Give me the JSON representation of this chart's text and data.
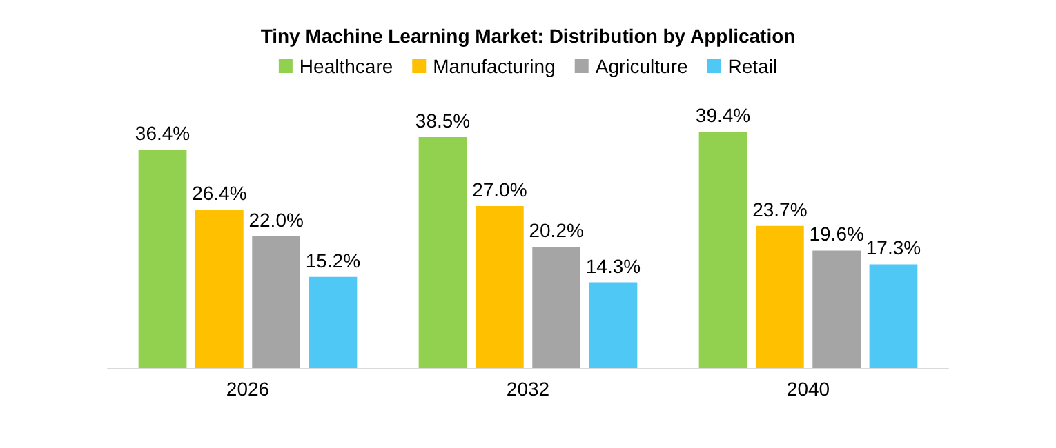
{
  "chart_data": {
    "type": "bar",
    "title": "Tiny Machine Learning Market: Distribution by Application",
    "categories": [
      "2026",
      "2032",
      "2040"
    ],
    "series": [
      {
        "name": "Healthcare",
        "color": "#92d050",
        "values": [
          36.4,
          38.5,
          39.4
        ],
        "value_labels": [
          "36.4%",
          "38.5%",
          "39.4%"
        ]
      },
      {
        "name": "Manufacturing",
        "color": "#ffc000",
        "values": [
          26.4,
          27.0,
          23.7
        ],
        "value_labels": [
          "26.4%",
          "27.0%",
          "23.7%"
        ]
      },
      {
        "name": "Agriculture",
        "color": "#a5a5a5",
        "values": [
          22.0,
          20.2,
          19.6
        ],
        "value_labels": [
          "22.0%",
          "20.2%",
          "19.6%"
        ]
      },
      {
        "name": "Retail",
        "color": "#4fc8f5",
        "values": [
          15.2,
          14.3,
          17.3
        ],
        "value_labels": [
          "15.2%",
          "14.3%",
          "17.3%"
        ]
      }
    ],
    "legend": "top"
  }
}
